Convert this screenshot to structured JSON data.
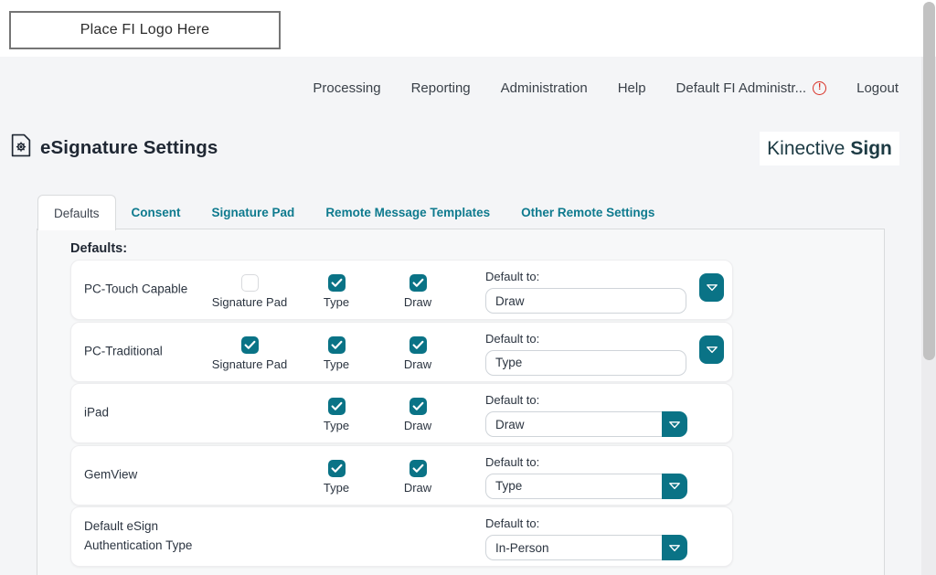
{
  "header": {
    "logo_placeholder": "Place FI Logo Here",
    "nav": [
      {
        "label": "Processing"
      },
      {
        "label": "Reporting"
      },
      {
        "label": "Administration"
      },
      {
        "label": "Help"
      },
      {
        "label": "Default FI Administr...",
        "warning": true
      },
      {
        "label": "Logout"
      }
    ]
  },
  "page": {
    "title": "eSignature Settings",
    "brand": {
      "name": "Kinective",
      "product": "Sign"
    }
  },
  "tabs": [
    {
      "label": "Defaults",
      "active": true
    },
    {
      "label": "Consent",
      "active": false
    },
    {
      "label": "Signature Pad",
      "active": false
    },
    {
      "label": "Remote Message Templates",
      "active": false
    },
    {
      "label": "Other Remote Settings",
      "active": false
    }
  ],
  "defaults_section": {
    "heading": "Defaults:",
    "default_to_label": "Default to:",
    "rows": [
      {
        "name": "PC-Touch Capable",
        "checkboxes": [
          {
            "label": "Signature Pad",
            "checked": false
          },
          {
            "label": "Type",
            "checked": true
          },
          {
            "label": "Draw",
            "checked": true
          }
        ],
        "default_to": "Draw",
        "button_style": "detached"
      },
      {
        "name": "PC-Traditional",
        "checkboxes": [
          {
            "label": "Signature Pad",
            "checked": true
          },
          {
            "label": "Type",
            "checked": true
          },
          {
            "label": "Draw",
            "checked": true
          }
        ],
        "default_to": "Type",
        "button_style": "detached"
      },
      {
        "name": "iPad",
        "checkboxes": [
          {
            "label": "Type",
            "checked": true
          },
          {
            "label": "Draw",
            "checked": true
          }
        ],
        "default_to": "Draw",
        "button_style": "attached"
      },
      {
        "name": "GemView",
        "checkboxes": [
          {
            "label": "Type",
            "checked": true
          },
          {
            "label": "Draw",
            "checked": true
          }
        ],
        "default_to": "Type",
        "button_style": "attached"
      },
      {
        "name": "Default eSign Authentication Type",
        "checkboxes": [],
        "default_to": "In-Person",
        "button_style": "attached"
      }
    ]
  },
  "icons": {
    "title": "document-gear-icon",
    "nav_warning": "warning-icon",
    "dropdown": "chevron-down-icon"
  },
  "colors": {
    "accent_teal": "#0a7386",
    "tab_link": "#0e7a8e",
    "warning_red": "#d93025",
    "title_text": "#1f2733",
    "brand_text": "#1c3a43"
  }
}
